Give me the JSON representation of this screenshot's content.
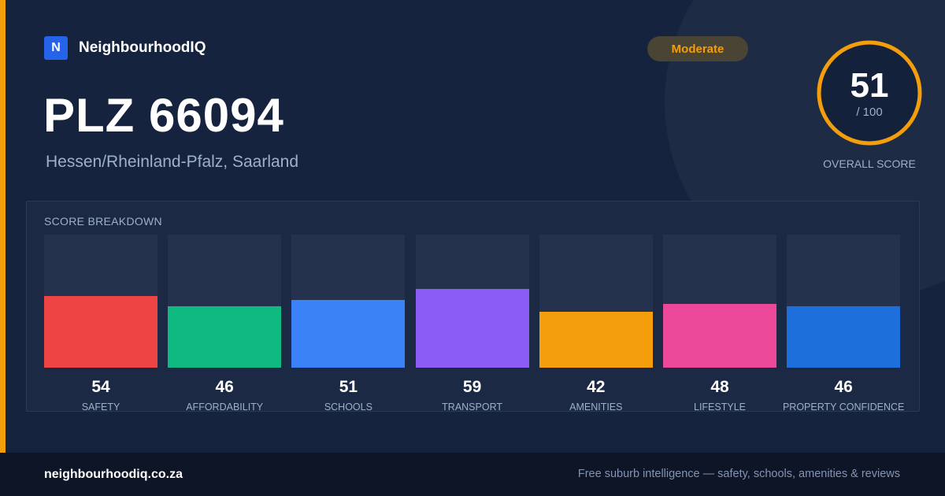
{
  "brand": {
    "logo_letter": "N",
    "name": "NeighbourhoodIQ"
  },
  "header": {
    "title": "PLZ 66094",
    "subtitle": "Hessen/Rheinland-Pfalz, Saarland",
    "badge": "Moderate"
  },
  "overall": {
    "score": "51",
    "out_of": "/ 100",
    "label": "OVERALL SCORE",
    "value": 51,
    "max": 100,
    "color": "#f59e0b"
  },
  "breakdown": {
    "title": "SCORE BREAKDOWN",
    "items": [
      {
        "label": "SAFETY",
        "value": "54",
        "color": "#ef4444"
      },
      {
        "label": "AFFORDABILITY",
        "value": "46",
        "color": "#10b981"
      },
      {
        "label": "SCHOOLS",
        "value": "51",
        "color": "#3b82f6"
      },
      {
        "label": "TRANSPORT",
        "value": "59",
        "color": "#8b5cf6"
      },
      {
        "label": "AMENITIES",
        "value": "42",
        "color": "#f59e0b"
      },
      {
        "label": "LIFESTYLE",
        "value": "48",
        "color": "#ec4899"
      },
      {
        "label": "PROPERTY CONFIDENCE",
        "value": "46",
        "color": "#1d6fdc"
      }
    ]
  },
  "footer": {
    "url": "neighbourhoodiq.co.za",
    "tagline": "Free suburb intelligence — safety, schools, amenities & reviews"
  },
  "chart_data": {
    "type": "bar",
    "title": "SCORE BREAKDOWN",
    "categories": [
      "SAFETY",
      "AFFORDABILITY",
      "SCHOOLS",
      "TRANSPORT",
      "AMENITIES",
      "LIFESTYLE",
      "PROPERTY CONFIDENCE"
    ],
    "values": [
      54,
      46,
      51,
      59,
      42,
      48,
      46
    ],
    "ylim": [
      0,
      100
    ],
    "grid": false
  }
}
